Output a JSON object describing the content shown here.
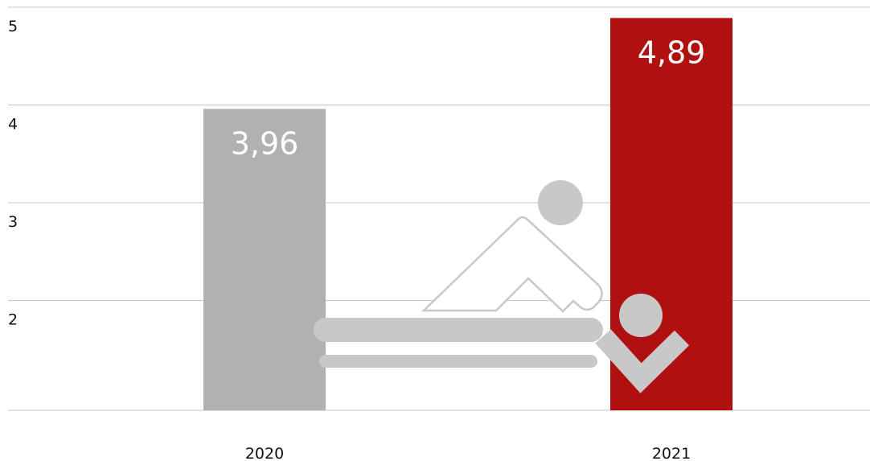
{
  "chart_data": {
    "type": "bar",
    "categories": [
      "2020",
      "2021"
    ],
    "values": [
      3.96,
      4.89
    ],
    "value_labels": [
      "3,96",
      "4,89"
    ],
    "colors": [
      "#b1b1b1",
      "#b01010"
    ],
    "ylim": [
      1,
      5
    ],
    "yticks": [
      2,
      3,
      4,
      5
    ],
    "grid": true
  }
}
